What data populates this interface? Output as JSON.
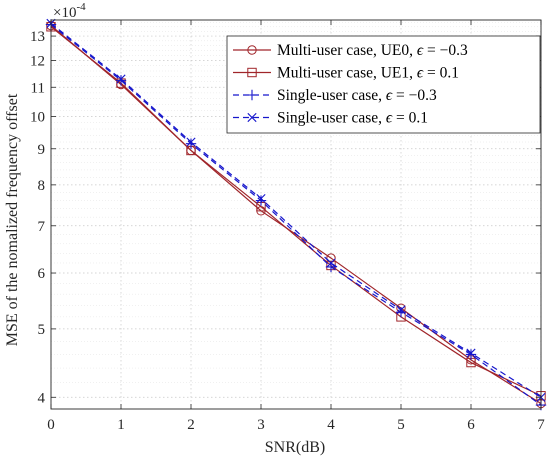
{
  "chart_data": {
    "type": "line",
    "xlabel": "SNR(dB)",
    "ylabel": "MSE of the nomalized frequency offset",
    "y_exponent_label": "×10",
    "y_exponent_power": "-4",
    "y_scale": "log",
    "xlim": [
      0,
      7
    ],
    "ylim": [
      3.85,
      13.7
    ],
    "grid": true,
    "legend_position": "top-right",
    "x_ticks": [
      0,
      1,
      2,
      3,
      4,
      5,
      6,
      7
    ],
    "y_ticks": [
      4,
      5,
      6,
      7,
      8,
      9,
      10,
      11,
      12,
      13
    ],
    "x": [
      0,
      1,
      2,
      3,
      4,
      5,
      6,
      7
    ],
    "series": [
      {
        "name_prefix": "Multi-user case, UE0, ",
        "epsilon_value": "−0.3",
        "color": "#a0252a",
        "line_style": "solid",
        "marker": "circle",
        "values": [
          13.45,
          11.1,
          8.95,
          7.35,
          6.3,
          5.35,
          4.52,
          3.92
        ]
      },
      {
        "name_prefix": "Multi-user case, UE1, ",
        "epsilon_value": "0.1",
        "color": "#a0252a",
        "line_style": "solid",
        "marker": "square",
        "values": [
          13.4,
          11.15,
          8.95,
          7.45,
          6.15,
          5.2,
          4.48,
          4.02
        ]
      },
      {
        "name_prefix": "Single-user case, ",
        "epsilon_value": "−0.3",
        "color": "#1616cc",
        "line_style": "dashed",
        "marker": "plus",
        "values": [
          13.5,
          11.25,
          9.15,
          7.6,
          6.12,
          5.28,
          4.6,
          3.9
        ]
      },
      {
        "name_prefix": "Single-user case, ",
        "epsilon_value": "0.1",
        "color": "#1616cc",
        "line_style": "dashed",
        "marker": "x",
        "values": [
          13.55,
          11.3,
          9.2,
          7.65,
          6.2,
          5.32,
          4.62,
          4.0
        ]
      }
    ]
  }
}
